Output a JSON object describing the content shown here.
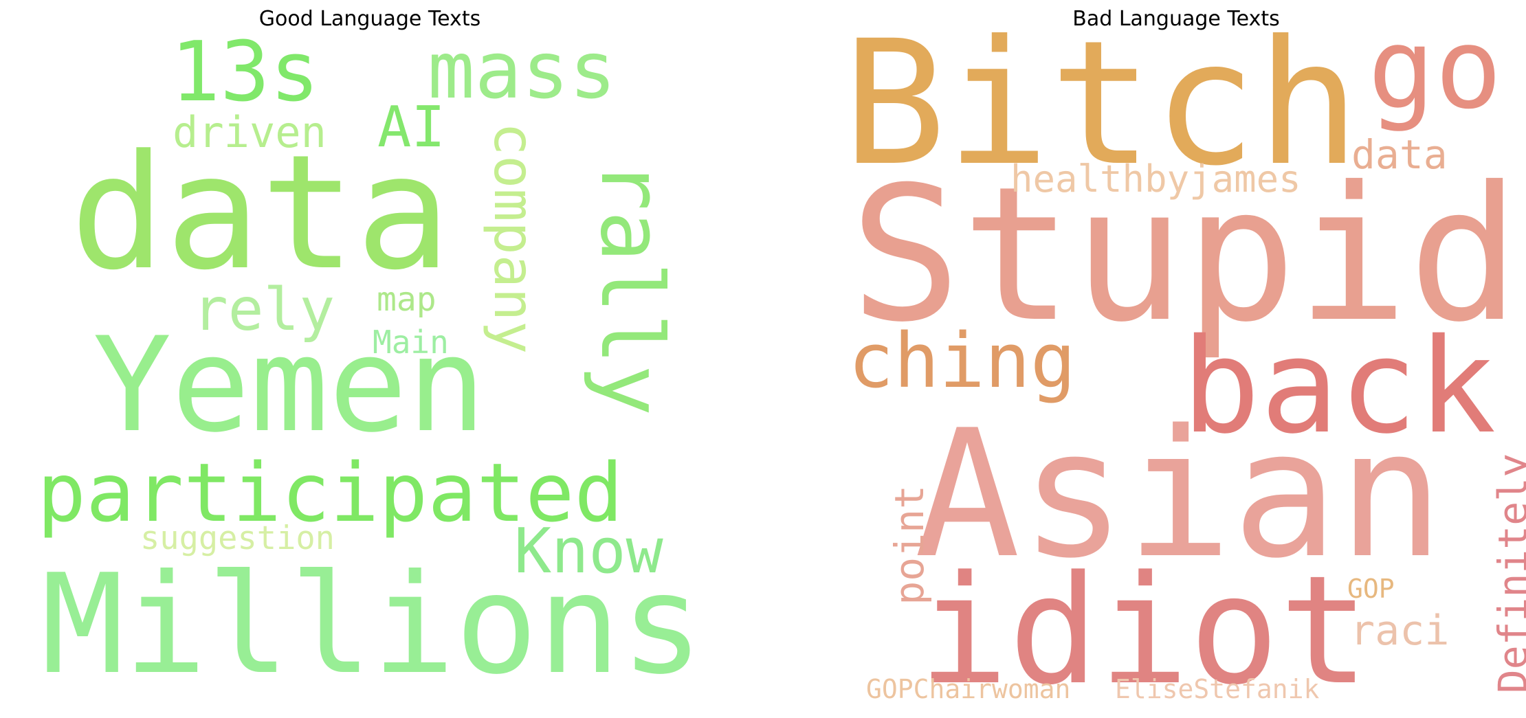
{
  "panels": {
    "good": {
      "title": "Good Language Texts",
      "words": [
        {
          "text": "data",
          "color": "#9ee56c"
        },
        {
          "text": "Yemen",
          "color": "#98ee8d"
        },
        {
          "text": "Millions",
          "color": "#98ee95"
        },
        {
          "text": "participated",
          "color": "#7fe864"
        },
        {
          "text": "13s",
          "color": "#80e86a"
        },
        {
          "text": "mass",
          "color": "#9deb8a"
        },
        {
          "text": "rally",
          "color": "#93e87a"
        },
        {
          "text": "company",
          "color": "#c4ee8f"
        },
        {
          "text": "Know",
          "color": "#8ee98c"
        },
        {
          "text": "AI",
          "color": "#84e76d"
        },
        {
          "text": "driven",
          "color": "#b6ee8e"
        },
        {
          "text": "rely",
          "color": "#b3ee9f"
        },
        {
          "text": "map",
          "color": "#ade88a"
        },
        {
          "text": "Main",
          "color": "#9deea2"
        },
        {
          "text": "suggestion",
          "color": "#d6efa4"
        }
      ]
    },
    "bad": {
      "title": "Bad Language Texts",
      "words": [
        {
          "text": "Stupid",
          "color": "#e8a090"
        },
        {
          "text": "Bitch",
          "color": "#e2aa5a"
        },
        {
          "text": "Asian",
          "color": "#e9a39a"
        },
        {
          "text": "idiot",
          "color": "#e08482"
        },
        {
          "text": "back",
          "color": "#e17c78"
        },
        {
          "text": "go",
          "color": "#e68f80"
        },
        {
          "text": "ching",
          "color": "#e09b66"
        },
        {
          "text": "healthbyjames",
          "color": "#efc8a6"
        },
        {
          "text": "data",
          "color": "#e9ae92"
        },
        {
          "text": "point",
          "color": "#e7a595"
        },
        {
          "text": "Definitely",
          "color": "#e0858a"
        },
        {
          "text": "raci",
          "color": "#ecc2ab"
        },
        {
          "text": "GOP",
          "color": "#e7b87f"
        },
        {
          "text": "GOPChairwoman",
          "color": "#edc49f"
        },
        {
          "text": "EliseStefanik",
          "color": "#efc7ae"
        }
      ]
    }
  }
}
